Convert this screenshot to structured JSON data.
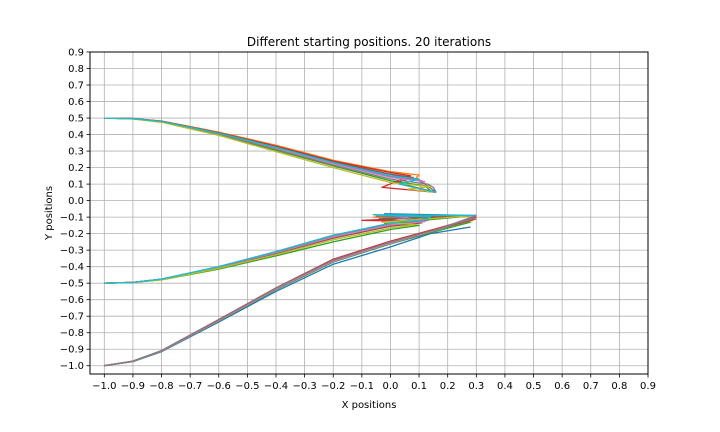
{
  "chart_data": {
    "type": "line",
    "title": "Different starting positions. 20 iterations",
    "xlabel": "X positions",
    "ylabel": "Y positions",
    "xlim": [
      -1.05,
      0.9
    ],
    "ylim": [
      -1.05,
      0.9
    ],
    "xticks": [
      -1.0,
      -0.9,
      -0.8,
      -0.7,
      -0.6,
      -0.5,
      -0.4,
      -0.3,
      -0.2,
      -0.1,
      0.0,
      0.1,
      0.2,
      0.3,
      0.4,
      0.5,
      0.6,
      0.7,
      0.8,
      0.9
    ],
    "xtick_labels": [
      "−1.0",
      "−0.9",
      "−0.8",
      "−0.7",
      "−0.6",
      "−0.5",
      "−0.4",
      "−0.3",
      "−0.2",
      "−0.1",
      "0.0",
      "0.1",
      "0.2",
      "0.3",
      "0.4",
      "0.5",
      "0.6",
      "0.7",
      "0.8",
      "0.9"
    ],
    "yticks": [
      0.9,
      0.8,
      0.7,
      0.6,
      0.5,
      0.4,
      0.3,
      0.2,
      0.1,
      0.0,
      -0.1,
      -0.2,
      -0.3,
      -0.4,
      -0.5,
      -0.6,
      -0.7,
      -0.8,
      -0.9,
      -1.0
    ],
    "ytick_labels": [
      "0.9",
      "0.8",
      "0.7",
      "0.6",
      "0.5",
      "0.4",
      "0.3",
      "0.2",
      "0.1",
      "0.0",
      "−0.1",
      "−0.2",
      "−0.3",
      "−0.4",
      "−0.5",
      "−0.6",
      "−0.7",
      "−0.8",
      "−0.9",
      "−1.0"
    ],
    "grid": true,
    "legend": "none",
    "colors": [
      "#1f77b4",
      "#ff7f0e",
      "#2ca02c",
      "#d62728",
      "#9467bd",
      "#8c564b",
      "#e377c2",
      "#7f7f7f",
      "#bcbd22",
      "#17becf"
    ],
    "series": [
      {
        "color": "#1f77b4",
        "x": [
          -1.0,
          -0.9,
          -0.8,
          -0.6,
          -0.4,
          -0.2,
          0.0,
          0.09,
          0.13,
          0.16
        ],
        "y": [
          0.5,
          0.497,
          0.48,
          0.41,
          0.32,
          0.23,
          0.16,
          0.13,
          0.09,
          0.05
        ]
      },
      {
        "color": "#ff7f0e",
        "x": [
          -1.0,
          -0.9,
          -0.8,
          -0.6,
          -0.4,
          -0.2,
          0.0,
          0.1,
          0.09,
          0.16
        ],
        "y": [
          0.5,
          0.497,
          0.482,
          0.415,
          0.335,
          0.245,
          0.175,
          0.155,
          0.14,
          0.05
        ]
      },
      {
        "color": "#2ca02c",
        "x": [
          -1.0,
          -0.9,
          -0.8,
          -0.6,
          -0.4,
          -0.2,
          0.0,
          0.12,
          0.14,
          0.16
        ],
        "y": [
          0.5,
          0.495,
          0.476,
          0.4,
          0.305,
          0.21,
          0.12,
          0.09,
          0.06,
          0.05
        ]
      },
      {
        "color": "#d62728",
        "x": [
          -1.0,
          -0.9,
          -0.8,
          -0.6,
          -0.4,
          -0.2,
          0.0,
          0.07,
          -0.03,
          0.16
        ],
        "y": [
          0.5,
          0.497,
          0.481,
          0.412,
          0.33,
          0.24,
          0.17,
          0.15,
          0.08,
          0.05
        ]
      },
      {
        "color": "#9467bd",
        "x": [
          -1.0,
          -0.9,
          -0.8,
          -0.6,
          -0.4,
          -0.2,
          0.0,
          0.11,
          0.12,
          0.16
        ],
        "y": [
          0.5,
          0.496,
          0.479,
          0.406,
          0.318,
          0.225,
          0.145,
          0.12,
          0.1,
          0.05
        ]
      },
      {
        "color": "#8c564b",
        "x": [
          -1.0,
          -0.9,
          -0.8,
          -0.6,
          -0.4,
          -0.2,
          0.0,
          0.08,
          0.02,
          0.16
        ],
        "y": [
          0.5,
          0.497,
          0.48,
          0.41,
          0.325,
          0.235,
          0.16,
          0.14,
          0.11,
          0.05
        ]
      },
      {
        "color": "#e377c2",
        "x": [
          -1.0,
          -0.9,
          -0.8,
          -0.6,
          -0.4,
          -0.2,
          0.0,
          0.12,
          0.1,
          0.16
        ],
        "y": [
          0.5,
          0.496,
          0.478,
          0.404,
          0.315,
          0.222,
          0.14,
          0.115,
          0.07,
          0.05
        ]
      },
      {
        "color": "#7f7f7f",
        "x": [
          -1.0,
          -0.9,
          -0.8,
          -0.6,
          -0.4,
          -0.2,
          0.0,
          0.13,
          0.15,
          0.16
        ],
        "y": [
          0.5,
          0.495,
          0.477,
          0.402,
          0.31,
          0.215,
          0.13,
          0.1,
          0.08,
          0.05
        ]
      },
      {
        "color": "#bcbd22",
        "x": [
          -1.0,
          -0.9,
          -0.8,
          -0.6,
          -0.4,
          -0.2,
          0.0,
          0.14,
          0.06,
          0.16
        ],
        "y": [
          0.5,
          0.494,
          0.474,
          0.395,
          0.297,
          0.2,
          0.11,
          0.085,
          0.07,
          0.05
        ]
      },
      {
        "color": "#17becf",
        "x": [
          -1.0,
          -0.9,
          -0.8,
          -0.6,
          -0.4,
          -0.2,
          0.0,
          0.1,
          0.03,
          0.16
        ],
        "y": [
          0.5,
          0.496,
          0.479,
          0.408,
          0.322,
          0.23,
          0.15,
          0.13,
          0.1,
          0.05
        ]
      },
      {
        "color": "#1f77b4",
        "x": [
          -1.0,
          -0.9,
          -0.8,
          -0.6,
          -0.4,
          -0.2,
          0.0,
          0.1,
          0.14,
          -0.02,
          0.3
        ],
        "y": [
          -0.5,
          -0.495,
          -0.475,
          -0.4,
          -0.31,
          -0.21,
          -0.14,
          -0.12,
          -0.11,
          -0.08,
          -0.09
        ]
      },
      {
        "color": "#ff7f0e",
        "x": [
          -1.0,
          -0.9,
          -0.8,
          -0.6,
          -0.4,
          -0.2,
          0.0,
          0.1,
          0.13,
          -0.06,
          0.3
        ],
        "y": [
          -0.5,
          -0.495,
          -0.477,
          -0.404,
          -0.318,
          -0.225,
          -0.15,
          -0.13,
          -0.12,
          -0.1,
          -0.09
        ]
      },
      {
        "color": "#2ca02c",
        "x": [
          -1.0,
          -0.9,
          -0.8,
          -0.6,
          -0.4,
          -0.2,
          0.0,
          0.1,
          -0.02,
          0.3
        ],
        "y": [
          -0.5,
          -0.496,
          -0.48,
          -0.415,
          -0.335,
          -0.25,
          -0.175,
          -0.15,
          -0.14,
          -0.09
        ]
      },
      {
        "color": "#d62728",
        "x": [
          -1.0,
          -0.9,
          -0.8,
          -0.6,
          -0.4,
          -0.2,
          0.0,
          0.12,
          -0.1,
          0.3
        ],
        "y": [
          -0.5,
          -0.495,
          -0.476,
          -0.402,
          -0.314,
          -0.218,
          -0.145,
          -0.125,
          -0.12,
          -0.09
        ]
      },
      {
        "color": "#9467bd",
        "x": [
          -1.0,
          -0.9,
          -0.8,
          -0.6,
          -0.4,
          -0.2,
          0.0,
          0.12,
          0.0,
          0.3
        ],
        "y": [
          -0.5,
          -0.495,
          -0.476,
          -0.401,
          -0.312,
          -0.215,
          -0.14,
          -0.12,
          -0.1,
          -0.09
        ]
      },
      {
        "color": "#8c564b",
        "x": [
          -1.0,
          -0.9,
          -0.8,
          -0.6,
          -0.4,
          -0.2,
          0.0,
          0.11,
          -0.04,
          0.3
        ],
        "y": [
          -0.5,
          -0.495,
          -0.477,
          -0.405,
          -0.32,
          -0.228,
          -0.155,
          -0.135,
          -0.11,
          -0.09
        ]
      },
      {
        "color": "#e377c2",
        "x": [
          -1.0,
          -0.9,
          -0.8,
          -0.6,
          -0.4,
          -0.2,
          0.0,
          0.12,
          0.02,
          0.3
        ],
        "y": [
          -0.5,
          -0.495,
          -0.476,
          -0.403,
          -0.315,
          -0.22,
          -0.147,
          -0.127,
          -0.09,
          -0.09
        ]
      },
      {
        "color": "#7f7f7f",
        "x": [
          -1.0,
          -0.9,
          -0.8,
          -0.6,
          -0.4,
          -0.2,
          0.0,
          0.13,
          -0.05,
          0.3
        ],
        "y": [
          -0.5,
          -0.495,
          -0.475,
          -0.4,
          -0.31,
          -0.212,
          -0.138,
          -0.118,
          -0.095,
          -0.09
        ]
      },
      {
        "color": "#bcbd22",
        "x": [
          -1.0,
          -0.9,
          -0.8,
          -0.6,
          -0.4,
          -0.2,
          0.0,
          0.09,
          -0.03,
          0.3
        ],
        "y": [
          -0.5,
          -0.496,
          -0.479,
          -0.41,
          -0.328,
          -0.238,
          -0.165,
          -0.145,
          -0.13,
          -0.09
        ]
      },
      {
        "color": "#17becf",
        "x": [
          -1.0,
          -0.9,
          -0.8,
          -0.6,
          -0.4,
          -0.2,
          0.0,
          0.12,
          0.14,
          -0.06,
          0.3
        ],
        "y": [
          -0.5,
          -0.495,
          -0.475,
          -0.399,
          -0.308,
          -0.21,
          -0.136,
          -0.116,
          -0.1,
          -0.085,
          -0.09
        ]
      },
      {
        "color": "#1f77b4",
        "x": [
          -1.0,
          -0.9,
          -0.8,
          -0.6,
          -0.4,
          -0.2,
          0.0,
          0.14,
          0.28
        ],
        "y": [
          -1.0,
          -0.975,
          -0.915,
          -0.735,
          -0.55,
          -0.385,
          -0.28,
          -0.2,
          -0.16
        ]
      },
      {
        "color": "#ff7f0e",
        "x": [
          -1.0,
          -0.9,
          -0.8,
          -0.6,
          -0.4,
          -0.2,
          0.0,
          0.16,
          0.29
        ],
        "y": [
          -1.0,
          -0.973,
          -0.91,
          -0.725,
          -0.535,
          -0.365,
          -0.255,
          -0.175,
          -0.12
        ]
      },
      {
        "color": "#2ca02c",
        "x": [
          -1.0,
          -0.9,
          -0.8,
          -0.6,
          -0.4,
          -0.2,
          0.0,
          0.16,
          0.28
        ],
        "y": [
          -1.0,
          -0.974,
          -0.912,
          -0.73,
          -0.54,
          -0.372,
          -0.262,
          -0.185,
          -0.13
        ]
      },
      {
        "color": "#d62728",
        "x": [
          -1.0,
          -0.9,
          -0.8,
          -0.6,
          -0.4,
          -0.2,
          0.0,
          0.17,
          0.3
        ],
        "y": [
          -1.0,
          -0.972,
          -0.908,
          -0.72,
          -0.528,
          -0.355,
          -0.245,
          -0.165,
          -0.1
        ]
      },
      {
        "color": "#9467bd",
        "x": [
          -1.0,
          -0.9,
          -0.8,
          -0.6,
          -0.4,
          -0.2,
          0.0,
          0.17,
          0.3
        ],
        "y": [
          -1.0,
          -0.972,
          -0.909,
          -0.722,
          -0.53,
          -0.36,
          -0.25,
          -0.17,
          -0.09
        ]
      },
      {
        "color": "#8c564b",
        "x": [
          -1.0,
          -0.9,
          -0.8,
          -0.6,
          -0.4,
          -0.2,
          0.0,
          0.17,
          0.3
        ],
        "y": [
          -1.0,
          -0.973,
          -0.91,
          -0.724,
          -0.532,
          -0.362,
          -0.252,
          -0.172,
          -0.11
        ]
      },
      {
        "color": "#e377c2",
        "x": [
          -1.0,
          -0.9,
          -0.8,
          -0.6,
          -0.4,
          -0.2,
          0.0,
          0.16,
          0.29
        ],
        "y": [
          -1.0,
          -0.973,
          -0.911,
          -0.727,
          -0.536,
          -0.367,
          -0.257,
          -0.178,
          -0.1
        ]
      },
      {
        "color": "#7f7f7f",
        "x": [
          -1.0,
          -0.9,
          -0.8,
          -0.6,
          -0.4,
          -0.2,
          0.0,
          0.17,
          0.3
        ],
        "y": [
          -1.0,
          -0.972,
          -0.909,
          -0.723,
          -0.531,
          -0.361,
          -0.251,
          -0.17,
          -0.095
        ]
      }
    ]
  }
}
